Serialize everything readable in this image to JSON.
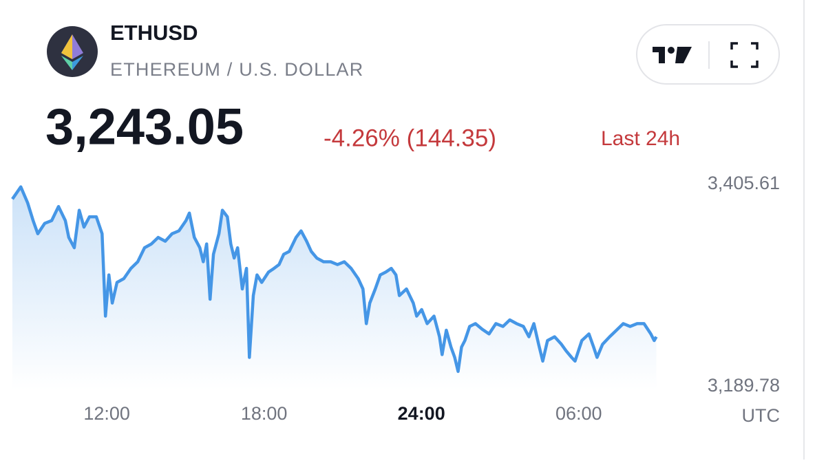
{
  "header": {
    "symbol": "ETHUSD",
    "description": "ETHEREUM / U.S. DOLLAR",
    "price": "3,243.05",
    "change": "-4.26% (144.35)",
    "period": "Last 24h"
  },
  "chart_data": {
    "type": "line",
    "color": "#4596e6",
    "x_unit": "UTC",
    "xlim": [
      8.4,
      33.0
    ],
    "xticks": [
      {
        "value": 12,
        "label": "12:00"
      },
      {
        "value": 18,
        "label": "18:00"
      },
      {
        "value": 24,
        "label": "24:00",
        "bold": true
      },
      {
        "value": 30,
        "label": "06:00"
      }
    ],
    "ylim": [
      3189.78,
      3405.61
    ],
    "yticks": [
      {
        "value": 3405.61,
        "label": "3,405.61"
      },
      {
        "value": 3189.78,
        "label": "3,189.78"
      }
    ],
    "x": [
      8.4,
      8.72,
      8.98,
      9.19,
      9.37,
      9.63,
      9.9,
      10.16,
      10.42,
      10.55,
      10.76,
      10.95,
      11.13,
      11.34,
      11.6,
      11.82,
      11.95,
      12.08,
      12.21,
      12.39,
      12.65,
      12.92,
      13.18,
      13.44,
      13.7,
      13.96,
      14.23,
      14.49,
      14.75,
      15.02,
      15.15,
      15.34,
      15.55,
      15.68,
      15.81,
      15.94,
      16.07,
      16.28,
      16.41,
      16.6,
      16.73,
      16.86,
      16.99,
      17.17,
      17.33,
      17.44,
      17.59,
      17.73,
      17.91,
      18.17,
      18.38,
      18.57,
      18.75,
      18.96,
      19.22,
      19.41,
      19.62,
      19.8,
      20.01,
      20.27,
      20.54,
      20.8,
      21.06,
      21.32,
      21.59,
      21.77,
      21.9,
      22.03,
      22.24,
      22.43,
      22.64,
      22.85,
      23.03,
      23.16,
      23.43,
      23.69,
      23.82,
      24.01,
      24.22,
      24.48,
      24.69,
      24.79,
      24.95,
      25.13,
      25.27,
      25.4,
      25.53,
      25.66,
      25.84,
      26.06,
      26.32,
      26.58,
      26.84,
      27.11,
      27.37,
      27.63,
      27.89,
      28.1,
      28.29,
      28.47,
      28.63,
      28.81,
      29.08,
      29.34,
      29.52,
      29.73,
      29.86,
      30.12,
      30.39,
      30.57,
      30.7,
      30.91,
      31.18,
      31.44,
      31.7,
      31.96,
      32.23,
      32.49,
      32.75,
      32.88,
      32.96
    ],
    "values": [
      3390,
      3403,
      3386,
      3367,
      3353,
      3364,
      3367,
      3382,
      3367,
      3349,
      3338,
      3378,
      3360,
      3371,
      3371,
      3353,
      3265,
      3309,
      3279,
      3301,
      3305,
      3316,
      3323,
      3338,
      3342,
      3349,
      3345,
      3353,
      3356,
      3367,
      3375,
      3349,
      3338,
      3323,
      3342,
      3283,
      3331,
      3353,
      3378,
      3371,
      3342,
      3327,
      3338,
      3294,
      3316,
      3221,
      3287,
      3309,
      3301,
      3312,
      3316,
      3320,
      3331,
      3334,
      3349,
      3356,
      3345,
      3334,
      3327,
      3323,
      3323,
      3320,
      3323,
      3316,
      3305,
      3294,
      3257,
      3279,
      3294,
      3309,
      3312,
      3316,
      3309,
      3287,
      3294,
      3279,
      3265,
      3272,
      3257,
      3265,
      3243,
      3224,
      3250,
      3232,
      3221,
      3206,
      3232,
      3239,
      3254,
      3257,
      3251,
      3246,
      3257,
      3254,
      3261,
      3257,
      3254,
      3243,
      3257,
      3235,
      3217,
      3239,
      3243,
      3235,
      3228,
      3221,
      3217,
      3239,
      3246,
      3232,
      3221,
      3235,
      3243,
      3250,
      3257,
      3254,
      3257,
      3257,
      3246,
      3239,
      3243
    ]
  }
}
